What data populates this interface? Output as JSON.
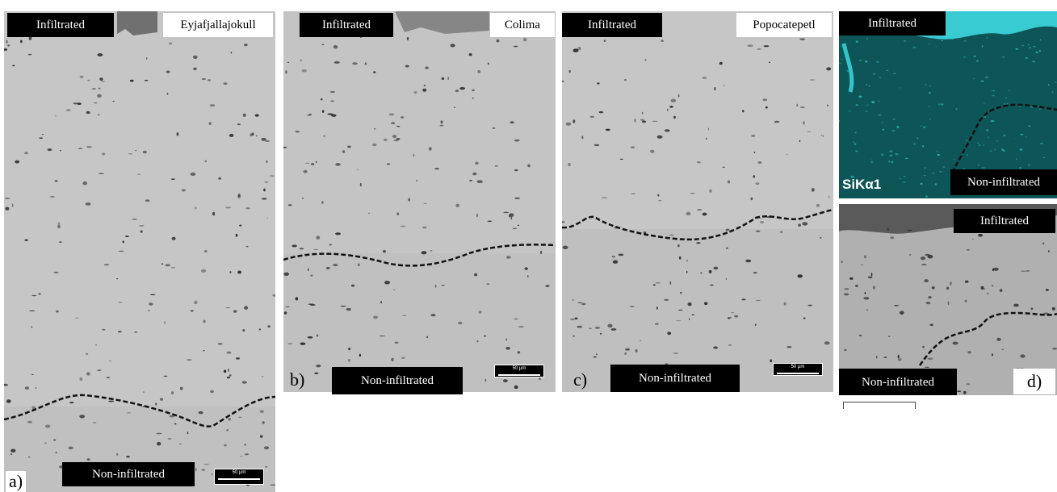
{
  "panels": {
    "a": {
      "letter": "a)",
      "top_label": "Infiltrated",
      "bottom_label": "Non-infiltrated",
      "volcano": "Eyjafjallajokull",
      "scale_bar": "50 μm"
    },
    "b": {
      "letter": "b)",
      "top_label": "Infiltrated",
      "bottom_label": "Non-infiltrated",
      "volcano": "Colima",
      "scale_bar": "50 μm"
    },
    "c": {
      "letter": "c)",
      "top_label": "Infiltrated",
      "bottom_label": "Non-infiltrated",
      "volcano": "Popocatepetl",
      "scale_bar": "50 μm"
    },
    "d": {
      "letter": "d)",
      "map_top_label": "Infiltrated",
      "map_bottom_label": "Non-infiltrated",
      "map_element": "SiKα1",
      "sem_top_label": "Infiltrated",
      "sem_bottom_label": "Non-infiltrated"
    }
  },
  "colors": {
    "sem_background": "#c4c4c4",
    "label_background": "#000000",
    "label_text": "#ffffff",
    "eds_map_background": "#0f5a5c",
    "eds_map_highlight": "#3fe0e6",
    "boundary_line": "#111111"
  }
}
